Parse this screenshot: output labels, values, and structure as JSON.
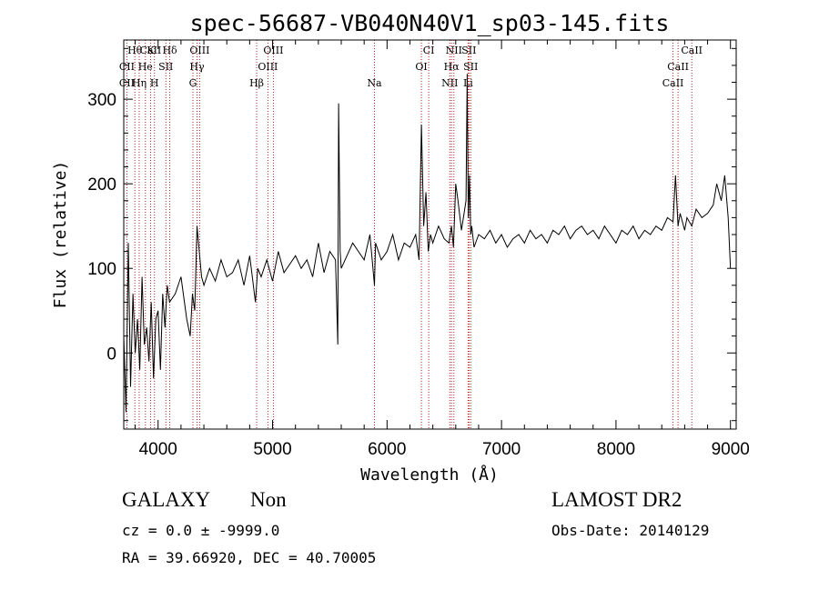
{
  "chart_data": {
    "type": "line",
    "title": "spec-56687-VB040N40V1_sp03-145.fits",
    "xlabel": "Wavelength (Å)",
    "ylabel": "Flux (relative)",
    "xlim": [
      3700,
      9050
    ],
    "ylim": [
      -90,
      370
    ],
    "xticks": [
      "4000",
      "5000",
      "6000",
      "7000",
      "8000",
      "9000"
    ],
    "yticks": [
      "0",
      "100",
      "200",
      "300"
    ],
    "series": [
      {
        "name": "flux",
        "x": [
          3700,
          3720,
          3740,
          3760,
          3780,
          3800,
          3820,
          3840,
          3860,
          3880,
          3900,
          3920,
          3940,
          3960,
          3980,
          4000,
          4020,
          4040,
          4060,
          4080,
          4100,
          4150,
          4200,
          4250,
          4280,
          4300,
          4320,
          4340,
          4380,
          4400,
          4450,
          4500,
          4550,
          4600,
          4650,
          4700,
          4750,
          4800,
          4850,
          4870,
          4900,
          4950,
          5000,
          5050,
          5100,
          5150,
          5200,
          5250,
          5300,
          5350,
          5400,
          5450,
          5500,
          5550,
          5570,
          5577,
          5590,
          5600,
          5650,
          5700,
          5750,
          5800,
          5850,
          5890,
          5900,
          5950,
          6000,
          6050,
          6100,
          6150,
          6200,
          6250,
          6280,
          6300,
          6320,
          6340,
          6360,
          6380,
          6400,
          6450,
          6500,
          6540,
          6563,
          6580,
          6600,
          6620,
          6650,
          6690,
          6700,
          6710,
          6720,
          6731,
          6740,
          6760,
          6800,
          6850,
          6900,
          6950,
          7000,
          7050,
          7100,
          7150,
          7200,
          7250,
          7300,
          7350,
          7400,
          7450,
          7500,
          7550,
          7600,
          7650,
          7700,
          7750,
          7800,
          7850,
          7900,
          7950,
          8000,
          8050,
          8100,
          8150,
          8200,
          8250,
          8300,
          8350,
          8400,
          8450,
          8498,
          8520,
          8542,
          8560,
          8600,
          8620,
          8662,
          8700,
          8750,
          8800,
          8850,
          8880,
          8900,
          8920,
          8950,
          8980,
          9000
        ],
        "y": [
          20,
          -70,
          130,
          -40,
          70,
          0,
          40,
          -20,
          90,
          10,
          30,
          -10,
          60,
          -30,
          40,
          50,
          -20,
          70,
          30,
          80,
          60,
          70,
          90,
          40,
          20,
          70,
          50,
          150,
          90,
          80,
          100,
          85,
          110,
          90,
          95,
          110,
          80,
          115,
          60,
          100,
          90,
          110,
          85,
          120,
          95,
          105,
          115,
          100,
          110,
          90,
          130,
          95,
          120,
          110,
          10,
          295,
          120,
          100,
          115,
          130,
          120,
          110,
          140,
          80,
          130,
          110,
          120,
          140,
          110,
          130,
          125,
          140,
          110,
          270,
          150,
          190,
          120,
          140,
          130,
          150,
          135,
          130,
          150,
          125,
          200,
          180,
          145,
          180,
          330,
          160,
          210,
          140,
          150,
          125,
          140,
          135,
          145,
          130,
          140,
          125,
          135,
          140,
          130,
          145,
          135,
          140,
          130,
          145,
          140,
          150,
          135,
          145,
          150,
          140,
          145,
          135,
          150,
          140,
          130,
          145,
          140,
          150,
          135,
          145,
          140,
          150,
          145,
          160,
          155,
          210,
          150,
          165,
          145,
          160,
          150,
          170,
          160,
          165,
          175,
          200,
          190,
          180,
          210,
          160,
          100
        ]
      }
    ],
    "lines": [
      {
        "name": "Hθ",
        "w": 3797,
        "row": 0
      },
      {
        "name": "CaII",
        "w": 3934,
        "row": 0
      },
      {
        "name": "K",
        "w": 3934,
        "row": 0
      },
      {
        "name": "Hδ",
        "w": 4102,
        "row": 0
      },
      {
        "name": "OIII",
        "w": 4363,
        "row": 0
      },
      {
        "name": "OIII",
        "w": 5007,
        "row": 0
      },
      {
        "name": "CI",
        "w": 6364,
        "row": 0
      },
      {
        "name": "NII",
        "w": 6584,
        "row": 0
      },
      {
        "name": "SII",
        "w": 6716,
        "row": 0
      },
      {
        "name": "CaII",
        "w": 8662,
        "row": 0
      },
      {
        "name": "CII",
        "w": 3727,
        "row": 1
      },
      {
        "name": "He",
        "w": 3889,
        "row": 1
      },
      {
        "name": "SII",
        "w": 4068,
        "row": 1
      },
      {
        "name": "Hγ",
        "w": 4340,
        "row": 1
      },
      {
        "name": "OIII",
        "w": 4959,
        "row": 1
      },
      {
        "name": "OI",
        "w": 6300,
        "row": 1
      },
      {
        "name": "Hα",
        "w": 6563,
        "row": 1
      },
      {
        "name": "SII",
        "w": 6731,
        "row": 1
      },
      {
        "name": "CaII",
        "w": 8542,
        "row": 1
      },
      {
        "name": "CII",
        "w": 3727,
        "row": 2
      },
      {
        "name": "Hη",
        "w": 3835,
        "row": 2
      },
      {
        "name": "H",
        "w": 3968,
        "row": 2
      },
      {
        "name": "G",
        "w": 4304,
        "row": 2
      },
      {
        "name": "Hβ",
        "w": 4861,
        "row": 2
      },
      {
        "name": "Na",
        "w": 5890,
        "row": 2
      },
      {
        "name": "NII",
        "w": 6548,
        "row": 2
      },
      {
        "name": "Li",
        "w": 6708,
        "row": 2
      },
      {
        "name": "CaII",
        "w": 8498,
        "row": 2
      }
    ]
  },
  "info": {
    "object_class": "GALAXY",
    "subclass": "Non",
    "survey": "LAMOST DR2",
    "redshift": "cz = 0.0 ± -9999.0",
    "obs_date": "Obs-Date: 20140129",
    "coords": "RA =  39.66920, DEC =  40.70005"
  },
  "colors": {
    "axes": "#000000",
    "spectrum": "#000000",
    "line_marker": "#b22222"
  }
}
